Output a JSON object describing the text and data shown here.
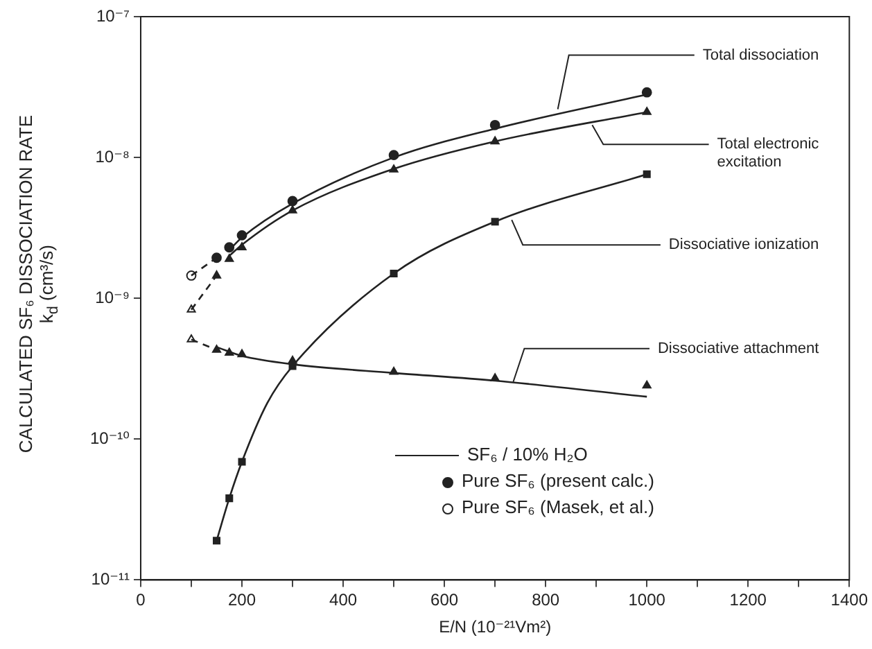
{
  "chart_data": {
    "type": "scatter",
    "xlabel": "E/N (10⁻²¹Vm²)",
    "ylabel": "CALCULATED SF₆ DISSOCIATION RATE\nk$_{d}$ (cm³/s)",
    "xlim": [
      0,
      1400
    ],
    "xticks": [
      0,
      {
        "value": 100,
        "label": null
      },
      200,
      {
        "value": 300,
        "label": null
      },
      400,
      {
        "value": 500,
        "label": null
      },
      600,
      {
        "value": 700,
        "label": null
      },
      800,
      {
        "value": 900,
        "label": null
      },
      1000,
      {
        "value": 1100,
        "label": null
      },
      1200,
      {
        "value": 1300,
        "label": null
      },
      1400
    ],
    "ylim": [
      1e-11,
      1e-07
    ],
    "yticks": [
      {
        "value": 1e-11,
        "label": "10⁻¹¹"
      },
      {
        "value": 1e-10,
        "label": "10⁻¹⁰"
      },
      {
        "value": 1e-09,
        "label": "10⁻⁹"
      },
      {
        "value": 1e-08,
        "label": "10⁻⁸"
      },
      {
        "value": 1e-07,
        "label": "10⁻⁷"
      }
    ],
    "log": "y",
    "grid": false,
    "legend": "bottom",
    "annotations": [
      {
        "text": "Total dissociation",
        "x": 824,
        "y": 2.2e-08
      },
      {
        "text": "Total electronic\nexcitation",
        "x": 892,
        "y": 1.7e-08
      },
      {
        "text": "Dissociative ionization",
        "x": 733,
        "y": 3.6e-09
      },
      {
        "text": "Dissociative attachment",
        "x": 736,
        "y": 2.55e-10
      }
    ],
    "series": [
      {
        "name": "SF₆ / 10% H₂O",
        "type": "line",
        "marker": "none",
        "line_style": "solid",
        "color": "#222222",
        "x": [
          175,
          200,
          300,
          500,
          700,
          1000
        ],
        "values": [
          2.2e-09,
          2.7e-09,
          4.7e-09,
          1e-08,
          1.6e-08,
          2.8e-08
        ]
      },
      {
        "type": "line",
        "marker": "none",
        "line_style": "solid",
        "color": "#222222",
        "x": [
          175,
          200,
          300,
          500,
          700,
          1000
        ],
        "values": [
          2e-09,
          2.4e-09,
          4.2e-09,
          8.3e-09,
          1.3e-08,
          2.1e-08
        ]
      },
      {
        "type": "line",
        "marker": "none",
        "line_style": "solid",
        "color": "#222222",
        "x": [
          150,
          175,
          200,
          250,
          300,
          500,
          700,
          1000
        ],
        "values": [
          1.9e-11,
          3.8e-11,
          6.9e-11,
          1.8e-10,
          3.3e-10,
          1.5e-09,
          3.5e-09,
          7.6e-09
        ]
      },
      {
        "type": "line",
        "marker": "none",
        "line_style": "solid",
        "color": "#222222",
        "x": [
          150,
          200,
          300,
          500,
          700,
          1000
        ],
        "values": [
          4.5e-10,
          3.9e-10,
          3.4e-10,
          2.95e-10,
          2.6e-10,
          2e-10
        ]
      },
      {
        "type": "line",
        "marker": "none",
        "line_style": "dashed",
        "color": "#222222",
        "x": [
          100,
          150
        ],
        "values": [
          1.45e-09,
          1.94e-09
        ]
      },
      {
        "type": "line",
        "marker": "none",
        "line_style": "dashed",
        "color": "#222222",
        "x": [
          100,
          150
        ],
        "values": [
          8.3e-10,
          1.45e-09
        ]
      },
      {
        "type": "line",
        "marker": "none",
        "line_style": "dashed",
        "color": "#222222",
        "x": [
          100,
          150
        ],
        "values": [
          5.1e-10,
          4.3e-10
        ]
      },
      {
        "name": "Pure SF₆ (present calc.)",
        "type": "scatter",
        "marker": "circle",
        "color": "#222222",
        "x": [
          150,
          175,
          200,
          300,
          500,
          700,
          1000
        ],
        "values": [
          1.94e-09,
          2.3e-09,
          2.8e-09,
          4.9e-09,
          1.04e-08,
          1.7e-08,
          2.9e-08
        ]
      },
      {
        "type": "scatter",
        "marker": "triangle",
        "color": "#222222",
        "x": [
          150,
          175,
          200,
          300,
          500,
          700,
          1000
        ],
        "values": [
          1.45e-09,
          1.9e-09,
          2.3e-09,
          4.2e-09,
          8.2e-09,
          1.3e-08,
          2.1e-08
        ]
      },
      {
        "type": "scatter",
        "marker": "square",
        "color": "#222222",
        "x": [
          150,
          175,
          200,
          300,
          500,
          700,
          1000
        ],
        "values": [
          1.9e-11,
          3.8e-11,
          6.9e-11,
          3.3e-10,
          1.5e-09,
          3.5e-09,
          7.6e-09
        ]
      },
      {
        "type": "scatter",
        "marker": "triangle",
        "color": "#222222",
        "x": [
          150,
          175,
          200,
          300,
          500,
          700,
          1000
        ],
        "values": [
          4.3e-10,
          4.1e-10,
          4e-10,
          3.6e-10,
          3e-10,
          2.7e-10,
          2.4e-10
        ]
      },
      {
        "name": "Pure SF₆ (Masek, et al.)",
        "type": "scatter",
        "marker": "circle",
        "color": "#ffffff",
        "x": [
          100
        ],
        "values": [
          1.45e-09
        ]
      },
      {
        "type": "scatter",
        "marker": "triangle",
        "color": "#ffffff",
        "x": [
          100
        ],
        "values": [
          8.3e-10
        ]
      },
      {
        "type": "scatter",
        "marker": "triangle",
        "color": "#ffffff",
        "x": [
          100
        ],
        "values": [
          5.1e-10
        ]
      }
    ]
  }
}
